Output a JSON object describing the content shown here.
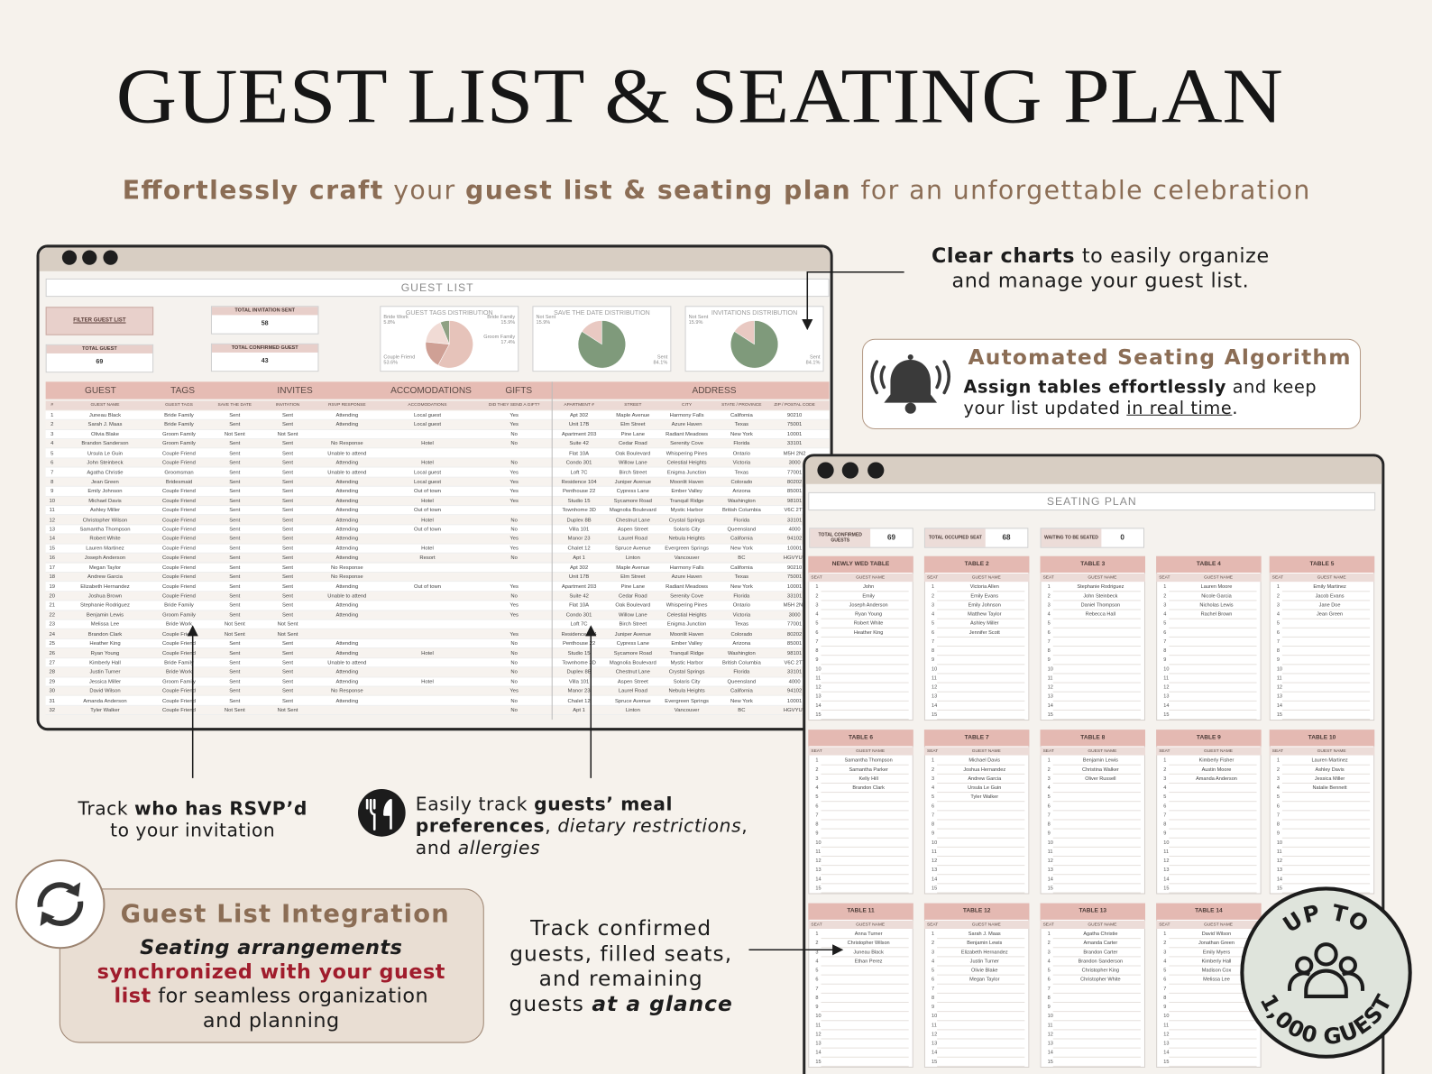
{
  "header": {
    "title": "GUEST LIST & SEATING PLAN",
    "subtitle": [
      {
        "text": "Effortlessly craft",
        "style": "b"
      },
      {
        "text": " your "
      },
      {
        "text": "guest list & seating plan",
        "style": "b"
      },
      {
        "text": " for an unforgettable celebration"
      }
    ]
  },
  "callouts": {
    "charts_note": [
      [
        {
          "text": "Clear charts",
          "style": "b"
        },
        {
          "text": " to easily organize"
        }
      ],
      [
        {
          "text": "and manage your guest list."
        }
      ]
    ],
    "algorithm": {
      "title": "Automated Seating Algorithm",
      "lines": [
        [
          {
            "text": "Assign tables effortlessly",
            "style": "b"
          },
          {
            "text": " and keep"
          }
        ],
        [
          {
            "text": "your list updated "
          },
          {
            "text": "in real time",
            "style": "u"
          },
          {
            "text": "."
          }
        ]
      ]
    },
    "rsvp": [
      [
        {
          "text": "Track "
        },
        {
          "text": "who has RSVP’d",
          "style": "b"
        }
      ],
      [
        {
          "text": "to your invitation"
        }
      ]
    ],
    "meal": [
      [
        {
          "text": "Easily track "
        },
        {
          "text": "guests’ meal",
          "style": "b"
        }
      ],
      [
        {
          "text": "preferences",
          "style": "b"
        },
        {
          "text": ", "
        },
        {
          "text": "dietary restrictions",
          "style": "i"
        },
        {
          "text": ","
        }
      ],
      [
        {
          "text": "and "
        },
        {
          "text": "allergies",
          "style": "i"
        }
      ]
    ],
    "integration": {
      "title": "Guest List Integration",
      "lines": [
        [
          {
            "text": "Seating arrangements",
            "style": "bi"
          }
        ],
        [
          {
            "text": "synchronized with your guest",
            "style": "rb"
          }
        ],
        [
          {
            "text": "list",
            "style": "rb"
          },
          {
            "text": " for seamless organization"
          }
        ],
        [
          {
            "text": "and planning"
          }
        ]
      ]
    },
    "glance": [
      [
        {
          "text": "Track confirmed"
        }
      ],
      [
        {
          "text": "guests, filled seats,"
        }
      ],
      [
        {
          "text": "and remaining"
        }
      ],
      [
        {
          "text": "guests "
        },
        {
          "text": "at a glance",
          "style": "bi"
        }
      ]
    ]
  },
  "guest_list": {
    "title": "GUEST LIST",
    "filter_button": "FILTER GUEST LIST",
    "stats": [
      {
        "label": "TOTAL INVITATION SENT",
        "value": 58
      },
      {
        "label": "TOTAL GUEST",
        "value": 69
      },
      {
        "label": "TOTAL CONFIRMED GUEST",
        "value": 43
      }
    ],
    "charts": [
      {
        "type": "pie",
        "title": "GUEST TAGS DISTRIBUTION",
        "categories": [
          "Bride Work",
          "Bride Family",
          "Groom Family",
          "Couple Friend"
        ],
        "values": [
          5.8,
          15.9,
          17.4,
          53.6
        ],
        "value_labels": [
          "5.8%",
          "15.9%",
          "17.4%",
          "53.6%"
        ],
        "colors": [
          "#8fa184",
          "#f1dbd5",
          "#cfa095",
          "#e6c3ba"
        ]
      },
      {
        "type": "pie",
        "title": "SAVE THE DATE DISTRIBUTION",
        "categories": [
          "Not Sent",
          "Sent"
        ],
        "values": [
          15.9,
          84.1
        ],
        "value_labels": [
          "15.9%",
          "84.1%"
        ],
        "colors": [
          "#e9c9c2",
          "#7f9a7b"
        ]
      },
      {
        "type": "pie",
        "title": "INVITATIONS DISTRIBUTION",
        "categories": [
          "Not Sent",
          "Sent"
        ],
        "values": [
          15.9,
          84.1
        ],
        "value_labels": [
          "15.9%",
          "84.1%"
        ],
        "colors": [
          "#e9c9c2",
          "#7f9a7b"
        ]
      }
    ],
    "sections": [
      "GUEST",
      "TAGS",
      "INVITES",
      "ACCOMODATIONS",
      "GIFTS",
      "ADDRESS"
    ],
    "columns": [
      "#",
      "GUEST NAME",
      "GUEST TAGS",
      "SAVE THE DATE",
      "INVITATION",
      "RSVP RESPONSE",
      "ACCOMODATIONS",
      "DID THEY SEND A GIFT?",
      "APARTMENT #",
      "STREET",
      "CITY",
      "STATE / PROVINCE",
      "ZIP / POSTAL CODE"
    ],
    "rows": [
      [
        1,
        "Juneau Black",
        "Bride Family",
        "Sent",
        "Sent",
        "Attending",
        "Local guest",
        "Yes",
        "Apt 302",
        "Maple Avenue",
        "Harmony Falls",
        "California",
        "90210"
      ],
      [
        2,
        "Sarah J. Maas",
        "Bride Family",
        "Sent",
        "Sent",
        "Attending",
        "Local guest",
        "Yes",
        "Unit 17B",
        "Elm Street",
        "Azure Haven",
        "Texas",
        "75001"
      ],
      [
        3,
        "Olivia Blake",
        "Groom Family",
        "Not Sent",
        "Not Sent",
        null,
        null,
        "No",
        "Apartment 203",
        "Pine Lane",
        "Radiant Meadows",
        "New York",
        "10001"
      ],
      [
        4,
        "Brandon Sanderson",
        "Groom Family",
        "Sent",
        "Sent",
        "No Response",
        "Hotel",
        "No",
        "Suite 42",
        "Cedar Road",
        "Serenity Cove",
        "Florida",
        "33101"
      ],
      [
        5,
        "Ursula Le Guin",
        "Couple Friend",
        "Sent",
        "Sent",
        "Unable to attend",
        null,
        null,
        "Flat 10A",
        "Oak Boulevard",
        "Whispering Pines",
        "Ontario",
        "M5H 2N2"
      ],
      [
        6,
        "John Steinbeck",
        "Couple Friend",
        "Sent",
        "Sent",
        "Attending",
        "Hotel",
        "No",
        "Condo 301",
        "Willow Lane",
        "Celestial Heights",
        "Victoria",
        "3000"
      ],
      [
        7,
        "Agatha Christie",
        "Groomsman",
        "Sent",
        "Sent",
        "Unable to attend",
        "Local guest",
        "Yes",
        "Loft 7C",
        "Birch Street",
        "Enigma Junction",
        "Texas",
        "77001"
      ],
      [
        8,
        "Jean Green",
        "Bridesmaid",
        "Sent",
        "Sent",
        "Attending",
        "Local guest",
        "Yes",
        "Residence 104",
        "Juniper Avenue",
        "Moonlit Haven",
        "Colorado",
        "80202"
      ],
      [
        9,
        "Emily Johnson",
        "Couple Friend",
        "Sent",
        "Sent",
        "Attending",
        "Out of town",
        "Yes",
        "Penthouse 22",
        "Cypress Lane",
        "Ember Valley",
        "Arizona",
        "85001"
      ],
      [
        10,
        "Michael Davis",
        "Couple Friend",
        "Sent",
        "Sent",
        "Attending",
        "Hotel",
        "Yes",
        "Studio 15",
        "Sycamore Road",
        "Tranquil Ridge",
        "Washington",
        "98101"
      ],
      [
        11,
        "Ashley Miller",
        "Couple Friend",
        "Sent",
        "Sent",
        "Attending",
        "Out of town",
        null,
        "Townhome 3D",
        "Magnolia Boulevard",
        "Mystic Harbor",
        "British Columbia",
        "V6C 2T7"
      ],
      [
        12,
        "Christopher Wilson",
        "Couple Friend",
        "Sent",
        "Sent",
        "Attending",
        "Hotel",
        "No",
        "Duplex 8B",
        "Chestnut Lane",
        "Crystal Springs",
        "Florida",
        "33101"
      ],
      [
        13,
        "Samantha Thompson",
        "Couple Friend",
        "Sent",
        "Sent",
        "Attending",
        "Out of town",
        "No",
        "Villa 101",
        "Aspen Street",
        "Solaris City",
        "Queensland",
        "4000"
      ],
      [
        14,
        "Robert White",
        "Couple Friend",
        "Sent",
        "Sent",
        "Attending",
        null,
        "Yes",
        "Manor 23",
        "Laurel Road",
        "Nebula Heights",
        "California",
        "94102"
      ],
      [
        15,
        "Lauren Martinez",
        "Couple Friend",
        "Sent",
        "Sent",
        "Attending",
        "Hotel",
        "Yes",
        "Chalet 12",
        "Spruce Avenue",
        "Evergreen Springs",
        "New York",
        "10001"
      ],
      [
        16,
        "Joseph Anderson",
        "Couple Friend",
        "Sent",
        "Sent",
        "Attending",
        "Resort",
        "No",
        "Apt 1",
        "Linton",
        "Vancouver",
        "BC",
        "HGVYUT"
      ],
      [
        17,
        "Megan Taylor",
        "Couple Friend",
        "Sent",
        "Sent",
        "No Response",
        null,
        null,
        "Apt 302",
        "Maple Avenue",
        "Harmony Falls",
        "California",
        "90210"
      ],
      [
        18,
        "Andrew Garcia",
        "Couple Friend",
        "Sent",
        "Sent",
        "No Response",
        null,
        null,
        "Unit 17B",
        "Elm Street",
        "Azure Haven",
        "Texas",
        "75001"
      ],
      [
        19,
        "Elizabeth Hernandez",
        "Couple Friend",
        "Sent",
        "Sent",
        "Attending",
        "Out of town",
        "Yes",
        "Apartment 203",
        "Pine Lane",
        "Radiant Meadows",
        "New York",
        "10001"
      ],
      [
        20,
        "Joshua Brown",
        "Couple Friend",
        "Sent",
        "Sent",
        "Unable to attend",
        null,
        "No",
        "Suite 42",
        "Cedar Road",
        "Serenity Cove",
        "Florida",
        "33101"
      ],
      [
        21,
        "Stephanie Rodriguez",
        "Bride Family",
        "Sent",
        "Sent",
        "Attending",
        null,
        "Yes",
        "Flat 10A",
        "Oak Boulevard",
        "Whispering Pines",
        "Ontario",
        "M5H 2N2"
      ],
      [
        22,
        "Benjamin Lewis",
        "Groom Family",
        "Sent",
        "Sent",
        "Attending",
        null,
        "Yes",
        "Condo 301",
        "Willow Lane",
        "Celestial Heights",
        "Victoria",
        "3000"
      ],
      [
        23,
        "Melissa Lee",
        "Bride Work",
        "Not Sent",
        "Not Sent",
        null,
        null,
        null,
        "Loft 7C",
        "Birch Street",
        "Enigma Junction",
        "Texas",
        "77001"
      ],
      [
        24,
        "Brandon Clark",
        "Couple Friend",
        "Not Sent",
        "Not Sent",
        null,
        null,
        "Yes",
        "Residence 104",
        "Juniper Avenue",
        "Moonlit Haven",
        "Colorado",
        "80202"
      ],
      [
        25,
        "Heather King",
        "Couple Friend",
        "Sent",
        "Sent",
        "Attending",
        null,
        "No",
        "Penthouse 22",
        "Cypress Lane",
        "Ember Valley",
        "Arizona",
        "85001"
      ],
      [
        26,
        "Ryan Young",
        "Couple Friend",
        "Sent",
        "Sent",
        "Attending",
        "Hotel",
        "No",
        "Studio 15",
        "Sycamore Road",
        "Tranquil Ridge",
        "Washington",
        "98101"
      ],
      [
        27,
        "Kimberly Hall",
        "Bride Family",
        "Sent",
        "Sent",
        "Unable to attend",
        null,
        "No",
        "Townhome 3D",
        "Magnolia Boulevard",
        "Mystic Harbor",
        "British Columbia",
        "V6C 2T7"
      ],
      [
        28,
        "Justin Turner",
        "Bride Work",
        "Sent",
        "Sent",
        "Attending",
        null,
        "No",
        "Duplex 8B",
        "Chestnut Lane",
        "Crystal Springs",
        "Florida",
        "33101"
      ],
      [
        29,
        "Jessica Miller",
        "Groom Family",
        "Sent",
        "Sent",
        "Attending",
        "Hotel",
        "No",
        "Villa 101",
        "Aspen Street",
        "Solaris City",
        "Queensland",
        "4000"
      ],
      [
        30,
        "David Wilson",
        "Couple Friend",
        "Sent",
        "Sent",
        "No Response",
        null,
        "Yes",
        "Manor 23",
        "Laurel Road",
        "Nebula Heights",
        "California",
        "94102"
      ],
      [
        31,
        "Amanda Anderson",
        "Couple Friend",
        "Sent",
        "Sent",
        "Attending",
        null,
        "No",
        "Chalet 12",
        "Spruce Avenue",
        "Evergreen Springs",
        "New York",
        "10001"
      ],
      [
        32,
        "Tyler Walker",
        "Couple Friend",
        "Not Sent",
        "Not Sent",
        null,
        null,
        "No",
        "Apt 1",
        "Linton",
        "Vancouver",
        "BC",
        "HGVYUT"
      ]
    ]
  },
  "seating": {
    "title": "SEATING PLAN",
    "stats": [
      {
        "label": "TOTAL CONFIRMED GUESTS",
        "value": 69
      },
      {
        "label": "TOTAL OCCUPIED SEAT",
        "value": 68
      },
      {
        "label": "WAITING TO BE SEATED",
        "value": 0
      }
    ],
    "seat_header": "SEAT",
    "name_header": "GUEST NAME",
    "seats": [
      1,
      2,
      3,
      4,
      5,
      6,
      7,
      8,
      9,
      10,
      11,
      12,
      13,
      14,
      15
    ],
    "tables": [
      {
        "name": "NEWLY WED TABLE",
        "guests": [
          "John",
          "Emily",
          "Joseph Anderson",
          "Ryan Young",
          "Robert White",
          "Heather King"
        ]
      },
      {
        "name": "TABLE 2",
        "guests": [
          "Victoria Allen",
          "Emily Evans",
          "Emily Johnson",
          "Matthew Taylor",
          "Ashley Miller",
          "Jennifer Scott"
        ]
      },
      {
        "name": "TABLE 3",
        "guests": [
          "Stephanie Rodriguez",
          "John Steinbeck",
          "Daniel Thompson",
          "Rebecca Hall"
        ]
      },
      {
        "name": "TABLE 4",
        "guests": [
          "Lauren Moore",
          "Nicole Garcia",
          "Nicholas Lewis",
          "Rachel Brown"
        ]
      },
      {
        "name": "TABLE 5",
        "guests": [
          "Emily Martinez",
          "Jacob Evans",
          "Jane Doe",
          "Jean Green"
        ]
      },
      {
        "name": "TABLE 6",
        "guests": [
          "Samantha Thompson",
          "Samantha Parker",
          "Kelly Hill",
          "Brandon Clark"
        ]
      },
      {
        "name": "TABLE 7",
        "guests": [
          "Michael Davis",
          "Joshua Hernandez",
          "Andrew Garcia",
          "Ursula Le Guin",
          "Tyler Walker"
        ]
      },
      {
        "name": "TABLE 8",
        "guests": [
          "Benjamin Lewis",
          "Christina Walker",
          "Oliver Russell"
        ]
      },
      {
        "name": "TABLE 9",
        "guests": [
          "Kimberly Fisher",
          "Austin Moore",
          "Amanda Anderson"
        ]
      },
      {
        "name": "TABLE 10",
        "guests": [
          "Lauren Martinez",
          "Ashley Davis",
          "Jessica Miller",
          "Natalie Bennett"
        ]
      },
      {
        "name": "TABLE 11",
        "guests": [
          "Anna Turner",
          "Christopher Wilson",
          "Juneau Black",
          "Ethan Perez"
        ]
      },
      {
        "name": "TABLE 12",
        "guests": [
          "Sarah J. Maas",
          "Benjamin Lewis",
          "Elizabeth Hernandez",
          "Justin Turner",
          "Olivie Blake",
          "Megan Taylor"
        ]
      },
      {
        "name": "TABLE 13",
        "guests": [
          "Agatha Christie",
          "Amanda Carter",
          "Brandon Carter",
          "Brandon Sanderson",
          "Christopher King",
          "Christopher White"
        ]
      },
      {
        "name": "TABLE 14",
        "guests": [
          "David Wilson",
          "Jonathan Green",
          "Emily Myers",
          "Kimberly Hall",
          "Madison Cox",
          "Melissa Lee"
        ]
      }
    ]
  },
  "badge": {
    "top": "UP TO",
    "bottom": "1,000 GUEST"
  }
}
